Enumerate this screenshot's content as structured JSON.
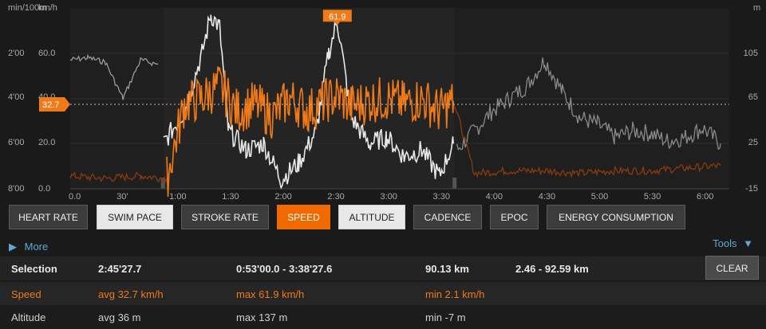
{
  "chart": {
    "left_axis_label": "min/100m",
    "left_axis_label2": "km/h",
    "right_axis_label": "m",
    "pace_ticks": [
      "2'00",
      "4'00",
      "6'00",
      "8'00"
    ],
    "speed_ticks": [
      "60.0",
      "40.0",
      "20.0",
      "0.0"
    ],
    "alt_ticks": [
      "105",
      "65",
      "25",
      "-15"
    ],
    "time_ticks": [
      "0.0",
      "30'",
      "1:00",
      "1:30",
      "2:00",
      "2:30",
      "3:00",
      "3:30",
      "4:00",
      "4:30",
      "5:00",
      "5:30",
      "6:00"
    ],
    "avg_speed_marker": "32.7",
    "max_speed_marker": "61.9",
    "colors": {
      "speed": "#f07a18",
      "altitude": "#e8e8e8",
      "swim": "#9a9a9a",
      "bg": "#1a1a1a",
      "plot": "#242424"
    }
  },
  "chart_data": {
    "type": "line",
    "x_unit": "time",
    "ylim_speed": [
      0,
      70
    ],
    "ylim_altitude": [
      -15,
      125
    ],
    "selection": [
      "0:53'00.0",
      "3:38'27.6"
    ],
    "series": [
      {
        "name": "Speed",
        "x": [
          "0.0",
          "0:20",
          "0:40",
          "0:55",
          "1:05",
          "1:15",
          "1:25",
          "1:35",
          "1:45",
          "1:55",
          "2:05",
          "2:15",
          "2:25",
          "2:32",
          "2:40",
          "2:50",
          "3:00",
          "3:10",
          "3:20",
          "3:30",
          "3:38",
          "3:50",
          "4:10",
          "4:30",
          "4:50",
          "5:10",
          "5:30",
          "5:50",
          "6:10"
        ],
        "values": [
          5,
          4,
          5,
          4,
          33,
          35,
          40,
          30,
          33,
          28,
          35,
          30,
          34,
          36,
          32,
          34,
          35,
          33,
          35,
          30,
          34,
          6,
          7,
          7,
          6,
          7,
          7,
          8,
          9
        ]
      },
      {
        "name": "Altitude",
        "x": [
          "0:53",
          "1:05",
          "1:15",
          "1:20",
          "1:25",
          "1:30",
          "1:40",
          "1:50",
          "2:00",
          "2:10",
          "2:20",
          "2:27",
          "2:32",
          "2:40",
          "2:50",
          "3:00",
          "3:10",
          "3:20",
          "3:30",
          "3:38"
        ],
        "values": [
          20,
          45,
          90,
          120,
          110,
          30,
          15,
          20,
          -8,
          5,
          30,
          90,
          115,
          40,
          20,
          25,
          10,
          15,
          -5,
          20
        ]
      },
      {
        "name": "Swim pace",
        "x": [
          "0.0",
          "0:10",
          "0:20",
          "0:30",
          "0:40",
          "0:50"
        ],
        "values": [
          2.3,
          2.2,
          2.4,
          4.0,
          2.3,
          2.5
        ]
      },
      {
        "name": "Altitude (outside selection)",
        "x": [
          "3:40",
          "3:50",
          "4:00",
          "4:10",
          "4:20",
          "4:30",
          "4:40",
          "4:50",
          "5:00",
          "5:10",
          "5:20",
          "5:30",
          "5:40",
          "5:50",
          "6:00",
          "6:10"
        ],
        "values": [
          15,
          30,
          45,
          55,
          65,
          85,
          60,
          40,
          35,
          25,
          30,
          28,
          22,
          25,
          32,
          20
        ]
      }
    ]
  },
  "buttons": [
    {
      "label": "HEART RATE",
      "state": "off"
    },
    {
      "label": "SWIM PACE",
      "state": "white"
    },
    {
      "label": "STROKE RATE",
      "state": "off"
    },
    {
      "label": "SPEED",
      "state": "orange"
    },
    {
      "label": "ALTITUDE",
      "state": "white"
    },
    {
      "label": "CADENCE",
      "state": "off"
    },
    {
      "label": "EPOC",
      "state": "off"
    },
    {
      "label": "ENERGY CONSUMPTION",
      "state": "off"
    }
  ],
  "more_label": "More",
  "tools_label": "Tools",
  "clear_label": "CLEAR",
  "summary": {
    "selection": {
      "label": "Selection",
      "duration": "2:45'27.7",
      "range": "0:53'00.0 - 3:38'27.6",
      "distance": "90.13 km",
      "dist_range": "2.46 - 92.59 km"
    },
    "speed": {
      "label": "Speed",
      "avg": "avg 32.7 km/h",
      "max": "max 61.9 km/h",
      "min": "min 2.1 km/h"
    },
    "altitude": {
      "label": "Altitude",
      "avg": "avg 36 m",
      "max": "max 137 m",
      "min": "min -7 m"
    }
  }
}
